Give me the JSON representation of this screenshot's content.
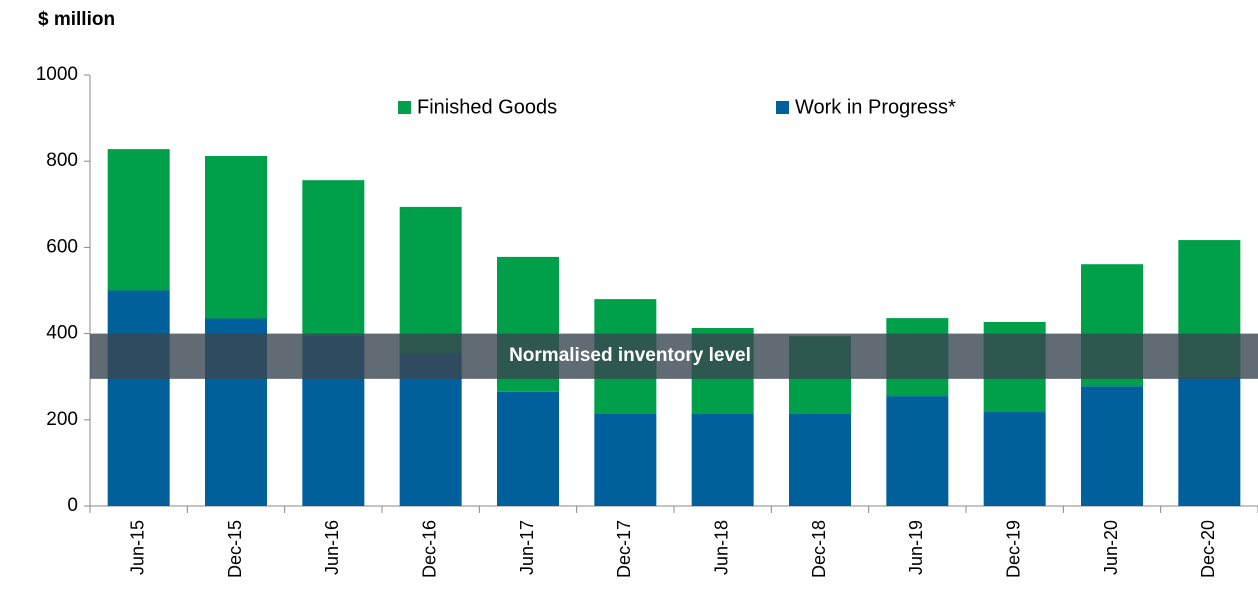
{
  "chart_data": {
    "type": "stacked_bar",
    "title": "$ million",
    "categories": [
      "Jun-15",
      "Dec-15",
      "Jun-16",
      "Dec-16",
      "Jun-17",
      "Dec-17",
      "Jun-18",
      "Dec-18",
      "Jun-19",
      "Dec-19",
      "Jun-20",
      "Dec-20"
    ],
    "series": [
      {
        "name": "Finished Goods",
        "color": "#00a04b",
        "values": [
          328,
          377,
          361,
          339,
          313,
          265,
          198,
          179,
          181,
          209,
          283,
          317
        ]
      },
      {
        "name": "Work in Progress*",
        "color": "#00609c",
        "values": [
          500,
          435,
          395,
          355,
          265,
          215,
          215,
          215,
          255,
          218,
          278,
          300
        ]
      }
    ],
    "ylim": [
      0,
      1000
    ],
    "yticks": [
      0,
      200,
      400,
      600,
      800,
      1000
    ],
    "band": {
      "label": "Normalised inventory level",
      "range": [
        295,
        400
      ],
      "color": "#3a4650"
    }
  }
}
